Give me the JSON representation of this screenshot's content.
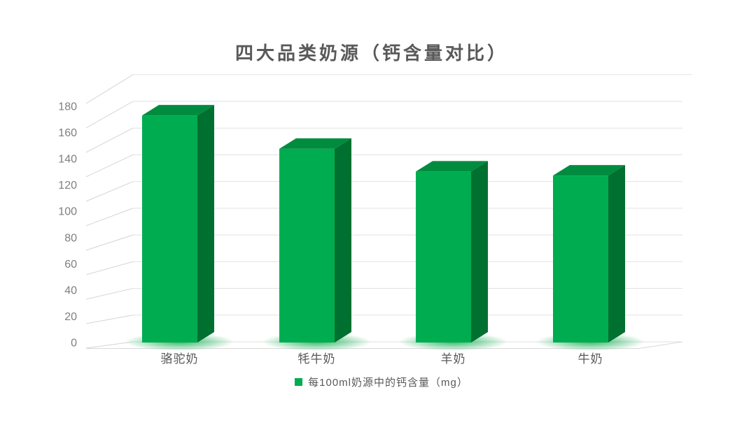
{
  "colors": {
    "background": "#FFFFFF",
    "bar_front": "#00AC50",
    "bar_top": "#008C3F",
    "bar_side": "#007030",
    "bar_glow": "#2FB565",
    "gridline": "#E2E2E2",
    "wall_diagonal": "#D4D4D4",
    "floor_line": "#D9D9D9",
    "axis_label_text": "#7F7F7F",
    "category_text": "#595959",
    "title_text": "#595959",
    "legend_text": "#595959"
  },
  "chart_data": {
    "type": "bar",
    "projection": "3d-column",
    "title": "四大品类奶源（钙含量对比）",
    "categories": [
      "骆驼奶",
      "牦牛奶",
      "羊奶",
      "牛奶"
    ],
    "series": [
      {
        "name": "每100ml奶源中的钙含量（mg）",
        "values": [
          170,
          145,
          128,
          125
        ],
        "color": "#00AC50"
      }
    ],
    "xlabel": "",
    "ylabel": "",
    "ylim": [
      0,
      180
    ],
    "ytick_interval": 20,
    "yticks": [
      180,
      160,
      140,
      120,
      100,
      80,
      60,
      40,
      20,
      0
    ],
    "grid": true,
    "legend_position": "bottom"
  }
}
